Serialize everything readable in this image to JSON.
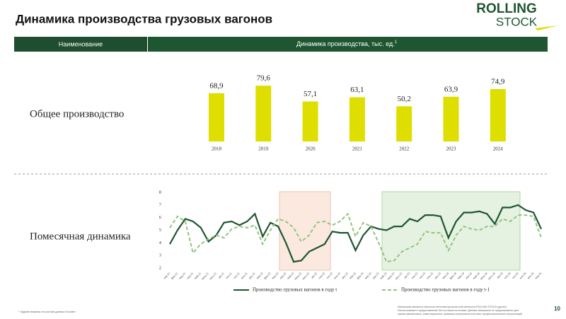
{
  "header": {
    "title": "Динамика производства грузовых вагонов",
    "logo_top": "ROLLING",
    "logo_bottom": "STOCK"
  },
  "table_header": {
    "col1": "Наименование",
    "col2": "Динамика производства, тыс. ед.",
    "col2_note": "1"
  },
  "rows": [
    "Общее производство",
    "Помесячная динамика"
  ],
  "chart_data": [
    {
      "type": "bar",
      "categories": [
        "2018",
        "2019",
        "2020",
        "2021",
        "2022",
        "2023",
        "2024"
      ],
      "values": [
        68.9,
        79.6,
        57.1,
        63.1,
        50.2,
        63.9,
        74.9
      ],
      "value_labels": [
        "68,9",
        "79,6",
        "57,1",
        "63,1",
        "50,2",
        "63,9",
        "74,9"
      ],
      "color": "#dede00"
    },
    {
      "type": "line",
      "categories": [
        "янв.21",
        "фев.21",
        "мар.21",
        "апр.21",
        "май.21",
        "июн.21",
        "июл.21",
        "авг.21",
        "сен.21",
        "окт.21",
        "ноя.21",
        "дек.21",
        "янв.22",
        "фев.22",
        "мар.22",
        "апр.22",
        "май.22",
        "июн.22",
        "июл.22",
        "авг.22",
        "сен.22",
        "окт.22",
        "ноя.22",
        "дек.22",
        "янв.23",
        "фев.23",
        "мар.23",
        "апр.23",
        "май.23",
        "июн.23",
        "июл.23",
        "авг.23",
        "сен.23",
        "окт.23",
        "ноя.23",
        "дек.23",
        "янв.24",
        "фев.24",
        "мар.24",
        "апр.24",
        "май.24",
        "июн.24",
        "июл.24",
        "авг.24",
        "сен.24",
        "окт.24",
        "ноя.24",
        "дек.24",
        "янв.25"
      ],
      "series": [
        {
          "name": "Производство грузовых вагонов в году t",
          "color": "#1e5631",
          "dash": false,
          "values": [
            3.9,
            5.0,
            5.9,
            5.7,
            5.2,
            4.1,
            4.6,
            5.6,
            5.7,
            5.4,
            5.7,
            6.3,
            4.5,
            5.6,
            5.3,
            4.0,
            2.5,
            2.6,
            3.3,
            3.6,
            3.9,
            4.9,
            4.8,
            4.8,
            3.4,
            4.6,
            5.3,
            5.1,
            5.0,
            5.3,
            5.3,
            5.9,
            5.7,
            6.2,
            6.2,
            6.1,
            4.4,
            5.7,
            6.4,
            6.4,
            6.5,
            6.3,
            5.5,
            6.8,
            6.8,
            7.0,
            6.6,
            6.4,
            5.1
          ]
        },
        {
          "name": "Производство грузовых вагонов в году t-1",
          "color": "#92c47e",
          "dash": true,
          "values": [
            5.2,
            6.1,
            5.7,
            3.2,
            3.9,
            4.3,
            4.6,
            4.4,
            5.1,
            5.3,
            5.2,
            5.4,
            3.9,
            5.0,
            5.9,
            5.7,
            5.2,
            4.1,
            4.6,
            5.6,
            5.7,
            5.4,
            5.7,
            6.3,
            4.5,
            5.6,
            5.3,
            4.0,
            2.5,
            2.6,
            3.3,
            3.6,
            3.9,
            4.9,
            4.8,
            4.8,
            3.4,
            4.6,
            5.3,
            5.1,
            5.0,
            5.3,
            5.3,
            5.9,
            5.7,
            6.2,
            6.2,
            6.1,
            4.4
          ]
        }
      ],
      "ylim": [
        2,
        8
      ],
      "yticks": [
        2,
        3,
        4,
        5,
        6,
        7,
        8
      ]
    }
  ],
  "footnote": "¹ Задействованы на основе данных Ecoster",
  "disclaimer": [
    "Материалы являются объектом интеллектуальной собственности ROLLING STOCK (далее)",
    "Использование и предоставление без согласия источника. Данные материалы не предназначены для",
    "оценки финансовых, инвестиционных, правовых результатов или иных профессиональных консультаций"
  ],
  "page_number": "10"
}
